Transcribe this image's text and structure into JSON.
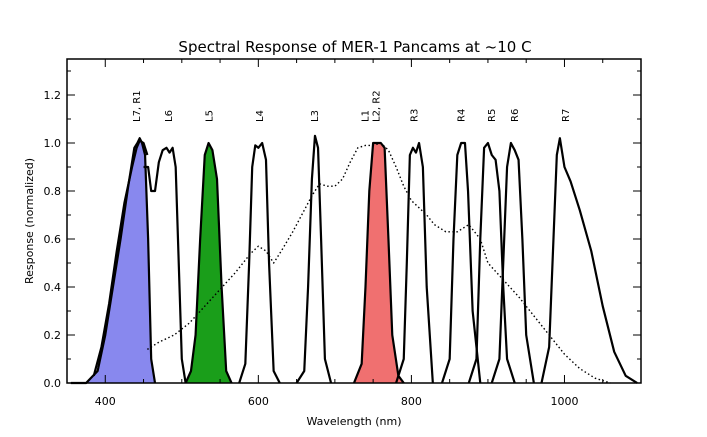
{
  "chart_data": {
    "type": "line",
    "title": "Spectral Response of MER-1 Pancams at ~10 C",
    "xlabel": "Wavelength (nm)",
    "ylabel": "Response (normalized)",
    "xlim": [
      350,
      1100
    ],
    "ylim": [
      0,
      1.35
    ],
    "xticks": [
      400,
      600,
      800,
      1000
    ],
    "yticks": [
      0.0,
      0.2,
      0.4,
      0.6,
      0.8,
      1.0,
      1.2
    ],
    "xtick_labels": [
      "400",
      "600",
      "800",
      "1000"
    ],
    "ytick_labels": [
      "0.0",
      "0.2",
      "0.4",
      "0.6",
      "0.8",
      "1.0",
      "1.2"
    ],
    "grid": false,
    "colors": {
      "blue_fill": "#8888ee",
      "green_fill": "#1a9e1a",
      "red_fill": "#f07070",
      "line": "#000000"
    },
    "filter_labels": [
      {
        "text": "L7, R1",
        "x": 440
      },
      {
        "text": "L6",
        "x": 482
      },
      {
        "text": "L5",
        "x": 535
      },
      {
        "text": "L4",
        "x": 601
      },
      {
        "text": "L3",
        "x": 673
      },
      {
        "text": "L1",
        "x": 739
      },
      {
        "text": "L2, R2",
        "x": 753
      },
      {
        "text": "R3",
        "x": 803
      },
      {
        "text": "R4",
        "x": 864
      },
      {
        "text": "R5",
        "x": 904
      },
      {
        "text": "R6",
        "x": 934
      },
      {
        "text": "R7",
        "x": 1001
      }
    ],
    "series": [
      {
        "label": "L7, R1",
        "style": "solid",
        "fill": "blue_fill",
        "x": [
          355,
          375,
          390,
          400,
          410,
          420,
          430,
          438,
          442,
          445,
          448,
          452,
          456,
          460,
          465
        ],
        "y": [
          0,
          0,
          0.05,
          0.2,
          0.4,
          0.6,
          0.82,
          0.98,
          1.0,
          1.02,
          1.0,
          0.95,
          0.6,
          0.1,
          0
        ]
      },
      {
        "label": "L7, R1",
        "style": "solid",
        "x": [
          385,
          395,
          405,
          415,
          425,
          435,
          441,
          445,
          450,
          455
        ],
        "y": [
          0.03,
          0.15,
          0.33,
          0.55,
          0.75,
          0.9,
          0.98,
          1.01,
          1.0,
          0.95
        ]
      },
      {
        "label": "L6",
        "style": "solid",
        "x": [
          450,
          456,
          460,
          465,
          470,
          475,
          480,
          484,
          488,
          492,
          495,
          500,
          505
        ],
        "y": [
          0.9,
          0.9,
          0.8,
          0.8,
          0.92,
          0.97,
          0.98,
          0.96,
          0.98,
          0.9,
          0.6,
          0.1,
          0
        ]
      },
      {
        "label": "L5",
        "style": "solid",
        "fill": "green_fill",
        "x": [
          505,
          512,
          518,
          524,
          530,
          535,
          540,
          546,
          552,
          558,
          565
        ],
        "y": [
          0,
          0.05,
          0.2,
          0.6,
          0.95,
          1.0,
          0.97,
          0.85,
          0.4,
          0.05,
          0
        ]
      },
      {
        "label": "L4",
        "style": "solid",
        "x": [
          575,
          583,
          588,
          592,
          596,
          600,
          605,
          610,
          614,
          620,
          628
        ],
        "y": [
          0,
          0.08,
          0.5,
          0.9,
          0.99,
          0.98,
          1.0,
          0.93,
          0.5,
          0.05,
          0
        ]
      },
      {
        "label": "L3",
        "style": "solid",
        "x": [
          650,
          660,
          665,
          670,
          674,
          678,
          682,
          687,
          695
        ],
        "y": [
          0,
          0.05,
          0.4,
          0.85,
          1.03,
          0.98,
          0.6,
          0.1,
          0
        ]
      },
      {
        "label": "L1",
        "style": "dotted",
        "x": [
          455,
          470,
          490,
          510,
          530,
          550,
          570,
          590,
          600,
          610,
          620,
          630,
          645,
          660,
          670,
          680,
          690,
          700,
          710,
          720,
          730,
          740,
          750,
          760,
          770,
          780,
          790,
          800,
          810,
          820,
          830,
          845,
          860,
          875,
          890,
          900,
          920,
          940,
          960,
          980,
          1000,
          1020,
          1040,
          1060
        ],
        "y": [
          0.14,
          0.17,
          0.2,
          0.25,
          0.32,
          0.39,
          0.46,
          0.54,
          0.57,
          0.55,
          0.5,
          0.55,
          0.63,
          0.72,
          0.78,
          0.83,
          0.82,
          0.82,
          0.85,
          0.92,
          0.98,
          0.99,
          0.99,
          1.0,
          0.97,
          0.9,
          0.82,
          0.76,
          0.73,
          0.7,
          0.66,
          0.63,
          0.63,
          0.66,
          0.6,
          0.5,
          0.43,
          0.36,
          0.28,
          0.2,
          0.12,
          0.06,
          0.02,
          0
        ]
      },
      {
        "label": "L2, R2",
        "style": "solid",
        "fill": "red_fill",
        "x": [
          725,
          735,
          740,
          745,
          750,
          755,
          760,
          765,
          770,
          775,
          783,
          790
        ],
        "y": [
          0,
          0.08,
          0.4,
          0.8,
          1.0,
          1.0,
          1.0,
          0.98,
          0.6,
          0.2,
          0.03,
          0
        ]
      },
      {
        "label": "R3",
        "style": "solid",
        "x": [
          780,
          790,
          794,
          798,
          802,
          806,
          810,
          815,
          820,
          828
        ],
        "y": [
          0,
          0.1,
          0.5,
          0.95,
          0.98,
          0.96,
          1.0,
          0.9,
          0.4,
          0
        ]
      },
      {
        "label": "R4",
        "style": "solid",
        "x": [
          840,
          850,
          855,
          860,
          865,
          870,
          874,
          880,
          890
        ],
        "y": [
          0,
          0.1,
          0.6,
          0.95,
          1.0,
          1.0,
          0.8,
          0.3,
          0
        ]
      },
      {
        "label": "R5",
        "style": "solid",
        "x": [
          875,
          885,
          890,
          895,
          900,
          905,
          910,
          915,
          920,
          925,
          935
        ],
        "y": [
          0,
          0.1,
          0.6,
          0.98,
          1.0,
          0.95,
          0.93,
          0.8,
          0.4,
          0.1,
          0
        ]
      },
      {
        "label": "R6",
        "style": "solid",
        "x": [
          905,
          915,
          920,
          925,
          930,
          935,
          940,
          945,
          950,
          960
        ],
        "y": [
          0,
          0.1,
          0.5,
          0.9,
          1.0,
          0.97,
          0.93,
          0.6,
          0.2,
          0
        ]
      },
      {
        "label": "R7",
        "style": "solid",
        "x": [
          970,
          980,
          985,
          990,
          994,
          1000,
          1008,
          1020,
          1035,
          1050,
          1065,
          1080,
          1095
        ],
        "y": [
          0,
          0.15,
          0.55,
          0.95,
          1.02,
          0.9,
          0.84,
          0.72,
          0.55,
          0.32,
          0.13,
          0.03,
          0
        ]
      }
    ]
  }
}
